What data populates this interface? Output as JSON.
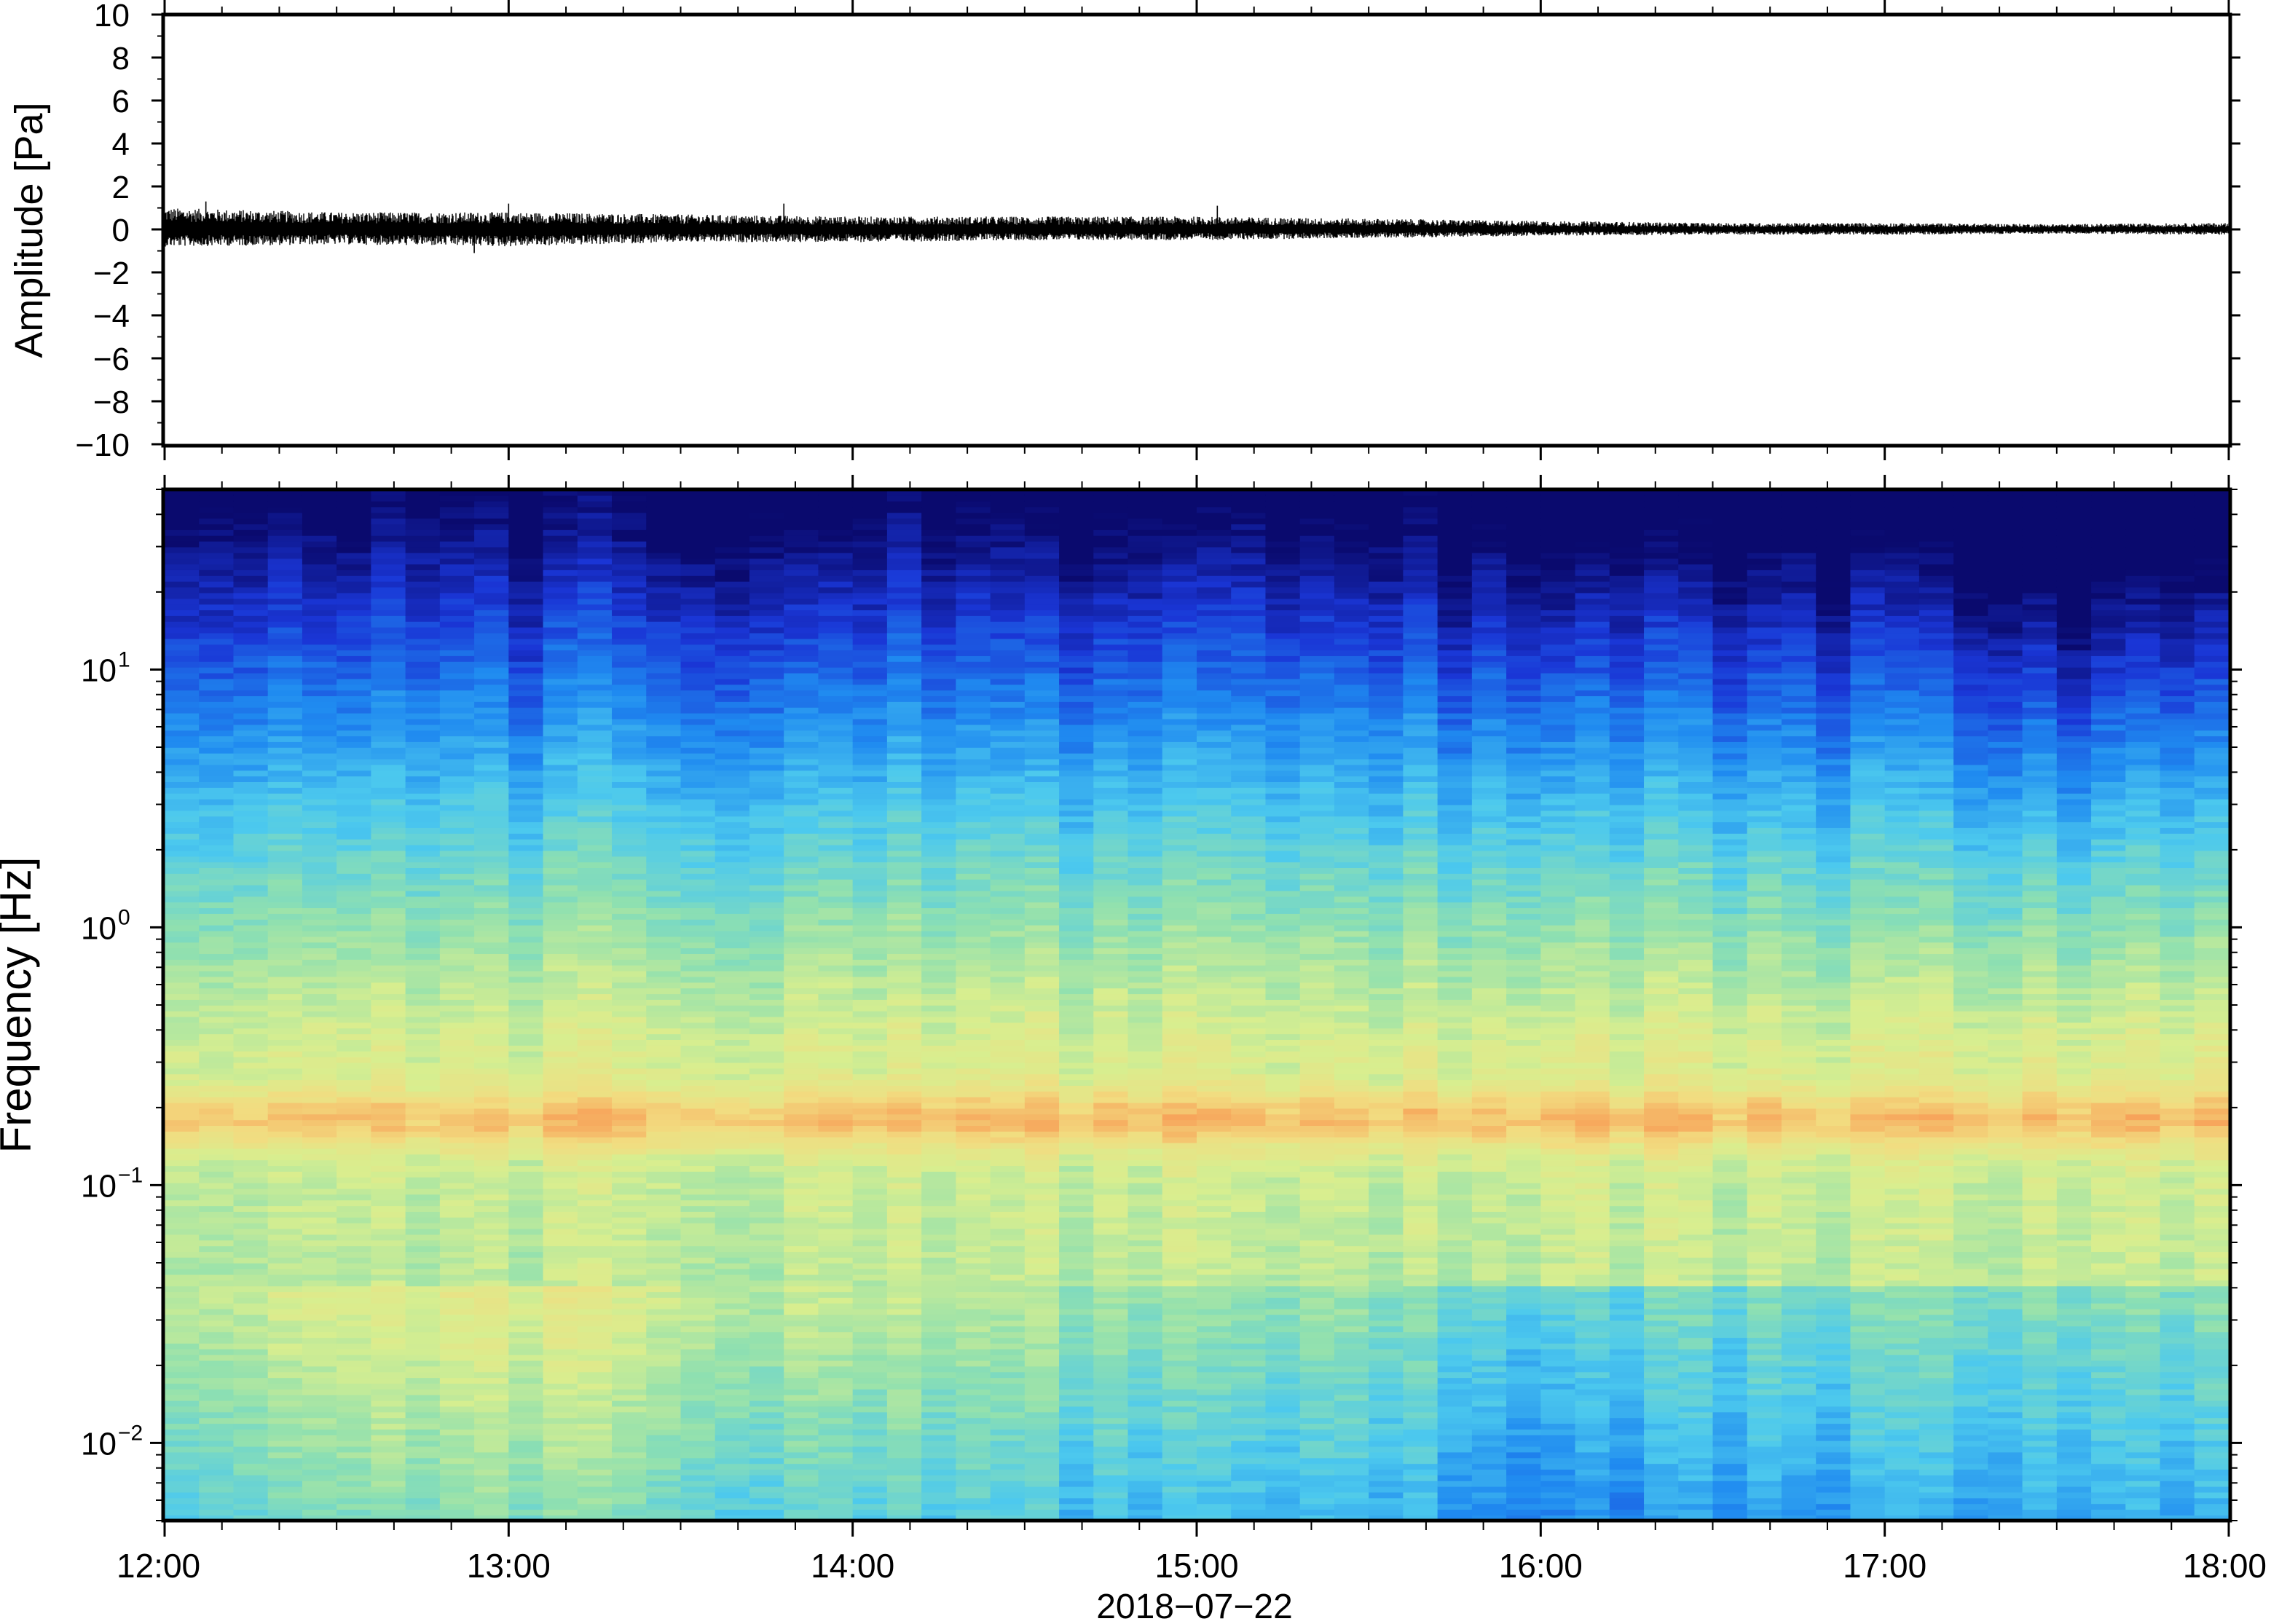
{
  "chart_data": [
    {
      "type": "line",
      "panel": "waveform",
      "ylabel": "Amplitude [Pa]",
      "ylim": [
        -10,
        10
      ],
      "yticks": [
        -10,
        -8,
        -6,
        -4,
        -2,
        0,
        2,
        4,
        6,
        8,
        10
      ],
      "ytick_labels": [
        "−10",
        "−8",
        "−6",
        "−4",
        "−2",
        "0",
        "2",
        "4",
        "6",
        "8",
        "10"
      ],
      "xlim_hours": [
        12,
        18
      ],
      "series": [
        {
          "x_hours": [
            12.0,
            12.5,
            13.0,
            13.5,
            14.0,
            14.5,
            15.0,
            15.5,
            16.0,
            16.5,
            17.0,
            17.5,
            18.0
          ],
          "envelope_max": [
            1.0,
            0.8,
            0.8,
            0.7,
            0.6,
            0.6,
            0.6,
            0.5,
            0.4,
            0.3,
            0.3,
            0.25,
            0.3
          ],
          "envelope_min": [
            -0.8,
            -0.7,
            -0.8,
            -0.6,
            -0.6,
            -0.5,
            -0.5,
            -0.4,
            -0.3,
            -0.25,
            -0.25,
            -0.2,
            -0.25
          ],
          "peaks": [
            {
              "x_hours": 12.12,
              "y": 1.3
            },
            {
              "x_hours": 12.9,
              "y": -1.1
            },
            {
              "x_hours": 13.0,
              "y": 1.2
            },
            {
              "x_hours": 13.8,
              "y": 1.2
            },
            {
              "x_hours": 15.06,
              "y": 1.1
            }
          ]
        }
      ]
    },
    {
      "type": "heatmap",
      "panel": "spectrogram",
      "ylabel": "Frequency [Hz]",
      "yscale": "log",
      "ylim": [
        0.005,
        50
      ],
      "yticks": [
        0.01,
        0.1,
        1,
        10
      ],
      "ytick_labels": [
        {
          "base": "10",
          "exp": "−2"
        },
        {
          "base": "10",
          "exp": "−1"
        },
        {
          "base": "10",
          "exp": "0"
        },
        {
          "base": "10",
          "exp": "1"
        }
      ],
      "xlim_hours": [
        12,
        18
      ],
      "colormap": [
        "#0a0a6e",
        "#1a36d6",
        "#1f8af0",
        "#4cc9ee",
        "#8fe0b0",
        "#d8ee8f",
        "#f2dc80",
        "#f7a45a",
        "#ef6a3a"
      ],
      "time_columns": 60,
      "description_levels": {
        "low_freq_power": [
          0.42,
          0.47,
          0.5,
          0.44,
          0.4,
          0.38,
          0.33,
          0.35,
          0.22,
          0.28,
          0.3,
          0.3,
          0.3
        ],
        "top_edge_hz": [
          32,
          30,
          30,
          27,
          29,
          25,
          27,
          26,
          19,
          22,
          20,
          14,
          17
        ],
        "x_hours": [
          12.0,
          12.5,
          13.0,
          13.5,
          14.0,
          14.5,
          15.0,
          15.5,
          16.0,
          16.5,
          17.0,
          17.5,
          18.0
        ]
      },
      "band_peak_hz": 0.18,
      "xticks_hours": [
        12,
        13,
        14,
        15,
        16,
        17,
        18
      ],
      "xtick_labels": [
        "12:00",
        "13:00",
        "14:00",
        "15:00",
        "16:00",
        "17:00",
        "18:00"
      ],
      "xlabel": "2018−07−22"
    }
  ]
}
